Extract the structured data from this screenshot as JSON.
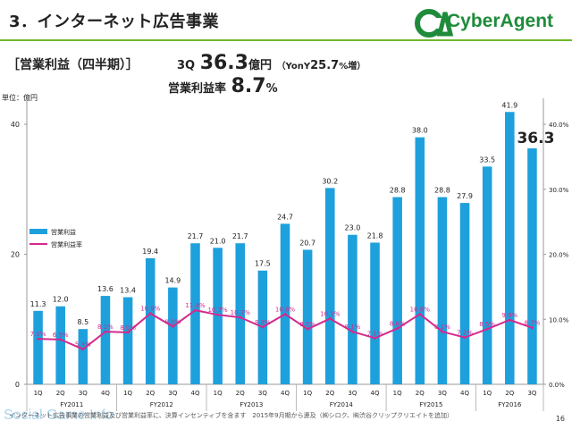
{
  "slide": {
    "title": "3．インターネット広告事業",
    "logo_text": "CyberAgent",
    "subhead": "［営業利益（四半期）］",
    "headline1_prefix": "3Q",
    "headline1_value": "36.3",
    "headline1_unit": "億円",
    "headline1_yoy_label": "（YonY",
    "headline1_yoy_value": "25.7",
    "headline1_yoy_unit": "%増）",
    "headline2_label": "営業利益率",
    "headline2_value": "8.7",
    "headline2_unit": "%",
    "unit_label": "単位：億円",
    "footnote": "インターネット広告事業の営業利益及び営業利益率に、決算インセンティブを含ます　2015年9月期から連及（㈱シロク、㈱渋谷クリップクリエイトを追加）",
    "page_number": "16",
    "watermark": "Social Game Info",
    "colors": {
      "bar": "#1ea0dc",
      "line": "#d42a8c",
      "accent_green": "#6fba2c",
      "logo_green": "#1e8c3a"
    }
  },
  "chart_data": {
    "type": "bar",
    "categories": [
      "1Q",
      "2Q",
      "3Q",
      "4Q",
      "1Q",
      "2Q",
      "3Q",
      "4Q",
      "1Q",
      "2Q",
      "3Q",
      "4Q",
      "1Q",
      "2Q",
      "3Q",
      "4Q",
      "1Q",
      "2Q",
      "3Q",
      "4Q",
      "1Q",
      "2Q",
      "3Q"
    ],
    "groups": [
      {
        "label": "FY2011",
        "start": 0,
        "end": 3
      },
      {
        "label": "FY2012",
        "start": 4,
        "end": 7
      },
      {
        "label": "FY2013",
        "start": 8,
        "end": 11
      },
      {
        "label": "FY2014",
        "start": 12,
        "end": 15
      },
      {
        "label": "FY2015",
        "start": 16,
        "end": 19
      },
      {
        "label": "FY2016",
        "start": 20,
        "end": 22
      }
    ],
    "series": [
      {
        "name": "営業利益",
        "kind": "bar",
        "axis": "left",
        "values": [
          11.3,
          12.0,
          8.5,
          13.6,
          13.4,
          19.4,
          14.9,
          21.7,
          21.0,
          21.7,
          17.5,
          24.7,
          20.7,
          30.2,
          23.0,
          21.8,
          28.8,
          38.0,
          28.8,
          27.9,
          33.5,
          41.9,
          36.3
        ]
      },
      {
        "name": "営業利益率",
        "kind": "line",
        "axis": "right",
        "values": [
          7.0,
          6.9,
          5.4,
          8.1,
          8.0,
          10.9,
          8.9,
          11.4,
          10.7,
          10.3,
          8.8,
          10.8,
          8.5,
          10.1,
          8.1,
          7.1,
          8.6,
          10.8,
          8.1,
          7.2,
          8.5,
          9.9,
          8.7
        ],
        "labels": [
          "7.0%",
          "6.9%",
          "5.4%",
          "8.1%",
          "8.0%",
          "10.9%",
          "8.9%",
          "11.4%",
          "10.7%",
          "10.3%",
          "8.8%",
          "10.8%",
          "8.5%",
          "10.1%",
          "8.1%",
          "7.1%",
          "8.6%",
          "10.8%",
          "8.1%",
          "7.2%",
          "8.5%",
          "9.9%",
          "8.7%"
        ]
      }
    ],
    "left_axis": {
      "ylim": [
        0,
        44
      ],
      "ticks": [
        "0",
        "20",
        "40"
      ],
      "tick_values": [
        0,
        20,
        40
      ]
    },
    "right_axis": {
      "ylim": [
        0,
        44
      ],
      "ticks": [
        "0.0%",
        "10.0%",
        "20.0%",
        "30.0%",
        "40.0%"
      ],
      "tick_values": [
        0,
        10,
        20,
        30,
        40
      ]
    },
    "bar_labels": [
      "11.3",
      "12.0",
      "8.5",
      "13.6",
      "13.4",
      "19.4",
      "14.9",
      "21.7",
      "21.0",
      "21.7",
      "17.5",
      "24.7",
      "20.7",
      "30.2",
      "23.0",
      "21.8",
      "28.8",
      "38.0",
      "28.8",
      "27.9",
      "33.5",
      "41.9",
      "36.3"
    ],
    "highlight_last_label": true,
    "legend": {
      "placement": "left",
      "entries": [
        "営業利益",
        "営業利益率"
      ]
    }
  }
}
